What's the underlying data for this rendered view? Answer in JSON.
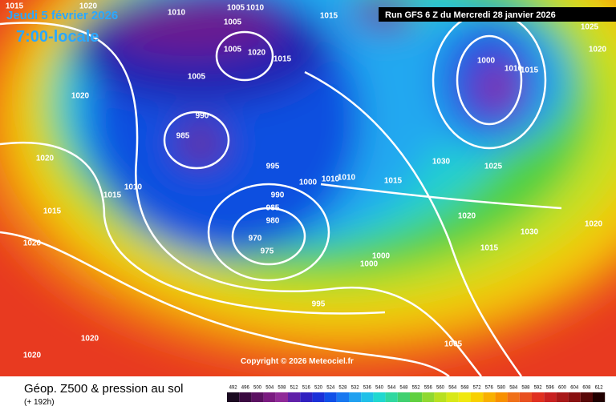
{
  "header": {
    "date": "Jeudi 5 février 2026",
    "time": "7:00-locale",
    "run": "Run GFS 6 Z du Mercredi 28 janvier 2026"
  },
  "copyright": "Copyright © 2026 Meteociel.fr",
  "footer": {
    "title": "Géop. Z500 & pression au sol",
    "subtitle": "(+ 192h)"
  },
  "scale": {
    "labels": [
      492,
      496,
      500,
      504,
      508,
      512,
      516,
      520,
      524,
      528,
      532,
      536,
      540,
      544,
      548,
      552,
      556,
      560,
      564,
      568,
      572,
      576,
      580,
      584,
      588,
      592,
      596,
      600,
      604,
      608,
      612
    ]
  },
  "isobar_labels": [
    "1015",
    "1020",
    "1010",
    "1005",
    "1010",
    "1005",
    "1015",
    "1025",
    "1020",
    "1020",
    "1005",
    "1015",
    "1020",
    "1005",
    "1000",
    "1010",
    "1015",
    "990",
    "985",
    "995",
    "1000",
    "1010",
    "1010",
    "1015",
    "1030",
    "1025",
    "1010",
    "1015",
    "1015",
    "1020",
    "1020",
    "990",
    "985",
    "980",
    "970",
    "975",
    "1020",
    "1030",
    "1020",
    "1015",
    "1000",
    "1000",
    "995",
    "1005",
    "1020",
    "1020"
  ]
}
